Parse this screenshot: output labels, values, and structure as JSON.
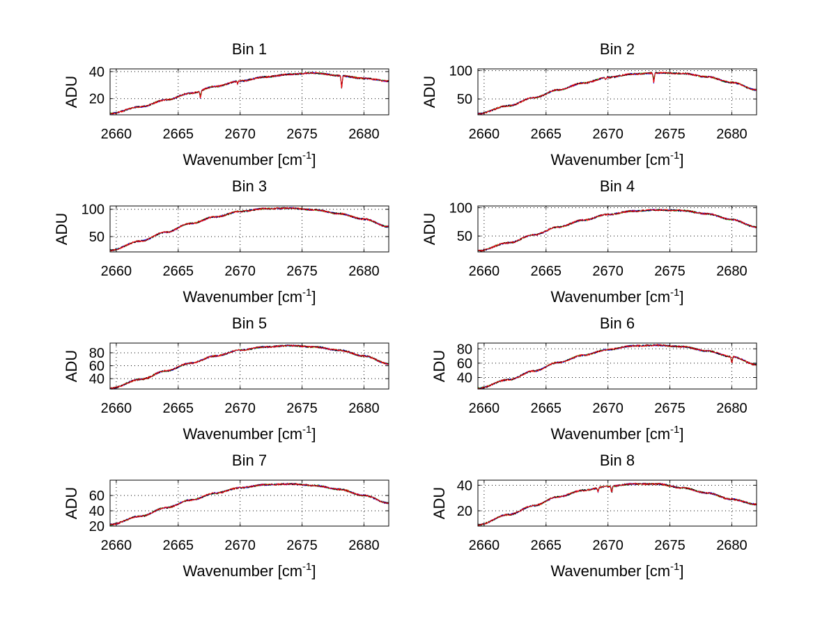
{
  "figure": {
    "xlabel": "Wavenumber [cm",
    "xlabel_sup": "-1",
    "xlabel_close": "]",
    "ylabel": "ADU"
  },
  "series_colors": {
    "red": "#ff0000",
    "green": "#00cc00",
    "blue": "#0000ff",
    "black": "#000000",
    "orange": "#ff8800"
  },
  "chart_data": [
    {
      "type": "line",
      "title": "Bin 1",
      "xlabel": "Wavenumber [cm-1]",
      "ylabel": "ADU",
      "xlim": [
        2659.5,
        2682
      ],
      "ylim": [
        8,
        42
      ],
      "xticks": [
        2660,
        2665,
        2670,
        2675,
        2680
      ],
      "yticks": [
        20,
        40
      ],
      "grid": true,
      "x": [
        2659.5,
        2662,
        2664,
        2666,
        2668,
        2670,
        2672,
        2674,
        2676,
        2678,
        2680,
        2682
      ],
      "y": [
        9,
        14,
        19,
        24,
        29,
        33,
        36,
        38,
        39,
        37,
        35,
        33
      ],
      "dips": [
        [
          2666.8,
          20
        ],
        [
          2669.8,
          31
        ],
        [
          2678.2,
          28
        ]
      ]
    },
    {
      "type": "line",
      "title": "Bin 2",
      "xlabel": "Wavenumber [cm-1]",
      "ylabel": "ADU",
      "xlim": [
        2659.5,
        2682
      ],
      "ylim": [
        22,
        103
      ],
      "xticks": [
        2660,
        2665,
        2670,
        2675,
        2680
      ],
      "yticks": [
        50,
        100
      ],
      "grid": true,
      "x": [
        2659.5,
        2662,
        2664,
        2666,
        2668,
        2670,
        2672,
        2674,
        2676,
        2678,
        2680,
        2682
      ],
      "y": [
        24,
        38,
        52,
        66,
        78,
        88,
        94,
        96,
        95,
        89,
        79,
        66
      ],
      "dips": [
        [
          2669.8,
          84
        ],
        [
          2673.7,
          78
        ]
      ]
    },
    {
      "type": "line",
      "title": "Bin 3",
      "xlabel": "Wavenumber [cm-1]",
      "ylabel": "ADU",
      "xlim": [
        2659.5,
        2682
      ],
      "ylim": [
        22,
        106
      ],
      "xticks": [
        2660,
        2665,
        2670,
        2675,
        2680
      ],
      "yticks": [
        50,
        100
      ],
      "grid": true,
      "x": [
        2659.5,
        2662,
        2664,
        2666,
        2668,
        2670,
        2672,
        2674,
        2676,
        2678,
        2680,
        2682
      ],
      "y": [
        25,
        42,
        58,
        74,
        86,
        96,
        101,
        102,
        99,
        92,
        82,
        68
      ],
      "dips": []
    },
    {
      "type": "line",
      "title": "Bin 4",
      "xlabel": "Wavenumber [cm-1]",
      "ylabel": "ADU",
      "xlim": [
        2659.5,
        2682
      ],
      "ylim": [
        22,
        103
      ],
      "xticks": [
        2660,
        2665,
        2670,
        2675,
        2680
      ],
      "yticks": [
        50,
        100
      ],
      "grid": true,
      "x": [
        2659.5,
        2662,
        2664,
        2666,
        2668,
        2670,
        2672,
        2674,
        2676,
        2678,
        2680,
        2682
      ],
      "y": [
        24,
        38,
        52,
        66,
        78,
        88,
        94,
        96,
        95,
        89,
        79,
        66
      ],
      "dips": [
        [
          2669.8,
          88
        ]
      ]
    },
    {
      "type": "line",
      "title": "Bin 5",
      "xlabel": "Wavenumber [cm-1]",
      "ylabel": "ADU",
      "xlim": [
        2659.5,
        2682
      ],
      "ylim": [
        24,
        95
      ],
      "xticks": [
        2660,
        2665,
        2670,
        2675,
        2680
      ],
      "yticks": [
        40,
        60,
        80
      ],
      "grid": true,
      "x": [
        2659.5,
        2662,
        2664,
        2666,
        2668,
        2670,
        2672,
        2674,
        2676,
        2678,
        2680,
        2682
      ],
      "y": [
        25,
        39,
        52,
        64,
        75,
        84,
        89,
        91,
        89,
        84,
        75,
        63
      ],
      "dips": []
    },
    {
      "type": "line",
      "title": "Bin 6",
      "xlabel": "Wavenumber [cm-1]",
      "ylabel": "ADU",
      "xlim": [
        2659.5,
        2682
      ],
      "ylim": [
        24,
        88
      ],
      "xticks": [
        2660,
        2665,
        2670,
        2675,
        2680
      ],
      "yticks": [
        40,
        60,
        80
      ],
      "grid": true,
      "x": [
        2659.5,
        2662,
        2664,
        2666,
        2668,
        2670,
        2672,
        2674,
        2676,
        2678,
        2680,
        2682
      ],
      "y": [
        25,
        37,
        49,
        61,
        71,
        79,
        84,
        85,
        83,
        77,
        69,
        58
      ],
      "dips": [
        [
          2680,
          60
        ]
      ]
    },
    {
      "type": "line",
      "title": "Bin 7",
      "xlabel": "Wavenumber [cm-1]",
      "ylabel": "ADU",
      "xlim": [
        2659.5,
        2682
      ],
      "ylim": [
        20,
        80
      ],
      "xticks": [
        2660,
        2665,
        2670,
        2675,
        2680
      ],
      "yticks": [
        20,
        40,
        60
      ],
      "grid": true,
      "x": [
        2659.5,
        2662,
        2664,
        2666,
        2668,
        2670,
        2672,
        2674,
        2676,
        2678,
        2680,
        2682
      ],
      "y": [
        22,
        33,
        44,
        54,
        63,
        70,
        74,
        75,
        73,
        68,
        60,
        50
      ],
      "dips": []
    },
    {
      "type": "line",
      "title": "Bin 8",
      "xlabel": "Wavenumber [cm-1]",
      "ylabel": "ADU",
      "xlim": [
        2659.5,
        2682
      ],
      "ylim": [
        8,
        44
      ],
      "xticks": [
        2660,
        2665,
        2670,
        2675,
        2680
      ],
      "yticks": [
        20,
        40
      ],
      "grid": true,
      "x": [
        2659.5,
        2662,
        2664,
        2666,
        2668,
        2670,
        2672,
        2674,
        2676,
        2678,
        2680,
        2682
      ],
      "y": [
        9,
        17,
        24,
        31,
        36,
        39,
        41,
        41,
        38,
        34,
        29,
        25
      ],
      "dips": [
        [
          2669.2,
          35
        ],
        [
          2670.3,
          34
        ]
      ]
    }
  ]
}
